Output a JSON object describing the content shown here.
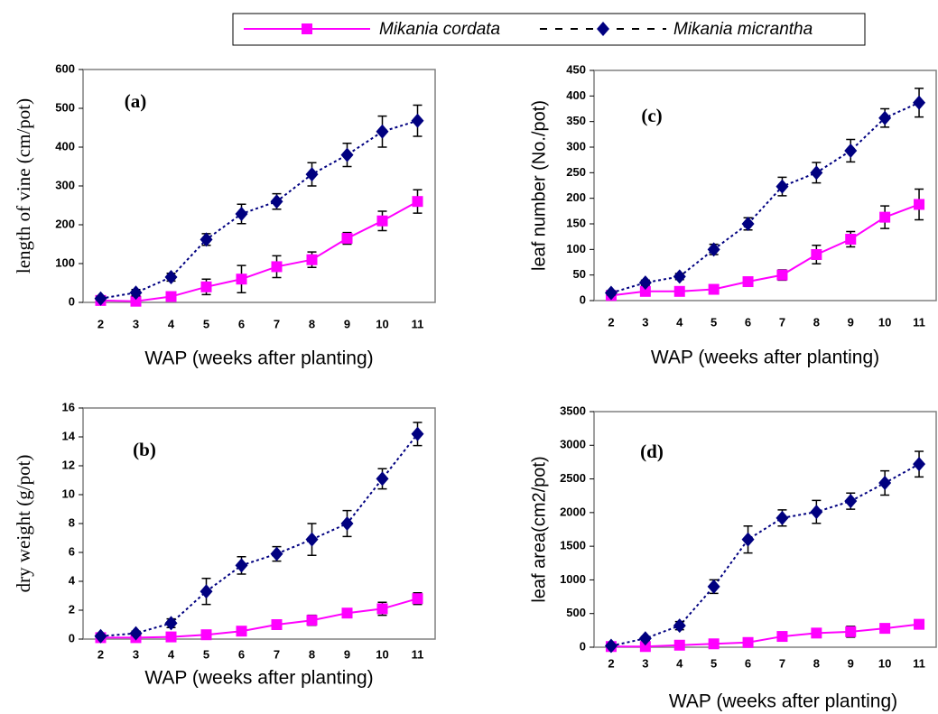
{
  "chart_data": [
    {
      "type": "line",
      "title": "(a)",
      "ylabel": "length of vine (cm/pot)",
      "xlabel": "WAP (weeks after planting)",
      "categories": [
        "2",
        "3",
        "4",
        "5",
        "6",
        "7",
        "8",
        "9",
        "10",
        "11"
      ],
      "ylim": [
        0,
        600
      ],
      "yticks": [
        0,
        100,
        200,
        300,
        400,
        500,
        600
      ],
      "series": [
        {
          "name": "Mikania cordata",
          "color": "#ff00ff",
          "linestyle": "solid",
          "marker": "square",
          "values": [
            5,
            3,
            15,
            40,
            60,
            92,
            110,
            165,
            210,
            260
          ],
          "errors": [
            3,
            3,
            8,
            20,
            35,
            28,
            20,
            15,
            25,
            30
          ]
        },
        {
          "name": "Mikania micrantha",
          "color": "#000080",
          "linestyle": "dashed",
          "marker": "diamond",
          "values": [
            10,
            25,
            65,
            162,
            228,
            260,
            330,
            380,
            440,
            468
          ],
          "errors": [
            5,
            8,
            10,
            15,
            25,
            20,
            30,
            30,
            40,
            40
          ]
        }
      ]
    },
    {
      "type": "line",
      "title": "(b)",
      "ylabel": "dry weight (g/pot)",
      "xlabel": "WAP (weeks after planting)",
      "categories": [
        "2",
        "3",
        "4",
        "5",
        "6",
        "7",
        "8",
        "9",
        "10",
        "11"
      ],
      "ylim": [
        0,
        16
      ],
      "yticks": [
        0,
        2,
        4,
        6,
        8,
        10,
        12,
        14,
        16
      ],
      "series": [
        {
          "name": "Mikania cordata",
          "color": "#ff00ff",
          "linestyle": "solid",
          "marker": "square",
          "values": [
            0.1,
            0.1,
            0.15,
            0.3,
            0.55,
            1.0,
            1.3,
            1.8,
            2.1,
            2.8
          ],
          "errors": [
            0.05,
            0.05,
            0.1,
            0.1,
            0.2,
            0.25,
            0.35,
            0.3,
            0.45,
            0.4
          ]
        },
        {
          "name": "Mikania micrantha",
          "color": "#000080",
          "linestyle": "dashed",
          "marker": "diamond",
          "values": [
            0.2,
            0.4,
            1.1,
            3.3,
            5.1,
            5.9,
            6.9,
            8.0,
            11.1,
            14.2
          ],
          "errors": [
            0.1,
            0.15,
            0.3,
            0.9,
            0.6,
            0.5,
            1.1,
            0.9,
            0.7,
            0.8
          ]
        }
      ]
    },
    {
      "type": "line",
      "title": "(c)",
      "ylabel": "leaf number (No./pot)",
      "xlabel": "WAP (weeks after planting)",
      "categories": [
        "2",
        "3",
        "4",
        "5",
        "6",
        "7",
        "8",
        "9",
        "10",
        "11"
      ],
      "ylim": [
        0,
        450
      ],
      "yticks": [
        0,
        50,
        100,
        150,
        200,
        250,
        300,
        350,
        400,
        450
      ],
      "series": [
        {
          "name": "Mikania cordata",
          "color": "#ff00ff",
          "linestyle": "solid",
          "marker": "square",
          "values": [
            10,
            18,
            18,
            22,
            37,
            50,
            90,
            120,
            163,
            188
          ],
          "errors": [
            3,
            5,
            5,
            5,
            8,
            10,
            18,
            15,
            22,
            30
          ]
        },
        {
          "name": "Mikania micrantha",
          "color": "#000080",
          "linestyle": "dashed",
          "marker": "diamond",
          "values": [
            15,
            35,
            47,
            100,
            150,
            223,
            250,
            293,
            357,
            387
          ],
          "errors": [
            4,
            5,
            6,
            10,
            12,
            18,
            20,
            22,
            18,
            28
          ]
        }
      ]
    },
    {
      "type": "line",
      "title": "(d)",
      "ylabel": "leaf area(cm2/pot)",
      "xlabel": "WAP (weeks after planting)",
      "categories": [
        "2",
        "3",
        "4",
        "5",
        "6",
        "7",
        "8",
        "9",
        "10",
        "11"
      ],
      "ylim": [
        0,
        3500
      ],
      "yticks": [
        0,
        500,
        1000,
        1500,
        2000,
        2500,
        3000,
        3500
      ],
      "series": [
        {
          "name": "Mikania cordata",
          "color": "#ff00ff",
          "linestyle": "solid",
          "marker": "square",
          "values": [
            10,
            10,
            30,
            50,
            70,
            160,
            210,
            230,
            280,
            340
          ],
          "errors": [
            5,
            5,
            10,
            15,
            20,
            30,
            40,
            80,
            40,
            60
          ]
        },
        {
          "name": "Mikania micrantha",
          "color": "#000080",
          "linestyle": "dashed",
          "marker": "diamond",
          "values": [
            20,
            130,
            320,
            900,
            1600,
            1920,
            2010,
            2170,
            2440,
            2720
          ],
          "errors": [
            10,
            30,
            60,
            100,
            200,
            120,
            170,
            120,
            180,
            190
          ]
        }
      ]
    }
  ]
}
